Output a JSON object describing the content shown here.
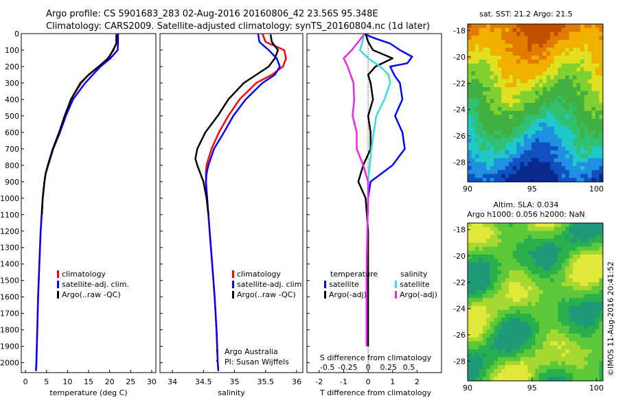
{
  "header": {
    "line1": "Argo profile: CS 5901683_283 02-Aug-2016 20160806_42 23.56S 95.348E",
    "line2": "Climatology: CARS2009. Satellite-adjusted climatology: synTS_20160804.nc (1d later)"
  },
  "footer_stamp": "©IMOS 11-Aug-2016 20:41:52",
  "colors": {
    "climatology": "#ff0000",
    "satellite": "#0000ff",
    "argo": "#000000",
    "sal_satellite": "#33dddd",
    "sal_argo": "#ee22ee"
  },
  "chart_data": [
    {
      "id": "temperature",
      "type": "line",
      "xlabel": "temperature (deg C)",
      "ylabel": "",
      "xlim": [
        -1,
        31
      ],
      "ylim": [
        2060,
        0
      ],
      "xticks": [
        "0",
        "5",
        "10",
        "15",
        "20",
        "25",
        "30"
      ],
      "yticks": [
        "0",
        "100",
        "200",
        "300",
        "400",
        "500",
        "600",
        "700",
        "800",
        "900",
        "1000",
        "1100",
        "1200",
        "1300",
        "1400",
        "1500",
        "1600",
        "1700",
        "1800",
        "1900",
        "2000"
      ],
      "legend": [
        "climatology",
        "satellite-adj. clim.",
        "Argo(..raw -QC)"
      ],
      "series": [
        {
          "name": "climatology",
          "color": "#ff0000",
          "y": [
            0,
            60,
            100,
            150,
            200,
            250,
            300,
            400,
            500,
            600,
            700,
            800,
            850,
            900,
            1000,
            1200,
            1400,
            1600,
            1800,
            2000,
            2050
          ],
          "x": [
            21.7,
            21.6,
            20.8,
            19.8,
            17.4,
            15.0,
            13.0,
            10.8,
            9.4,
            8.0,
            6.5,
            5.4,
            4.8,
            4.5,
            4.1,
            3.6,
            3.3,
            3.0,
            2.8,
            2.6,
            2.5
          ]
        },
        {
          "name": "satellite-adj. clim.",
          "color": "#0000ff",
          "y": [
            0,
            60,
            100,
            150,
            200,
            250,
            300,
            400,
            500,
            600,
            700,
            800,
            850,
            900,
            1000,
            1200,
            1400,
            1600,
            1800,
            2000,
            2050
          ],
          "x": [
            22.0,
            22.0,
            21.9,
            20.2,
            17.8,
            16.0,
            14.2,
            11.3,
            9.6,
            8.2,
            6.6,
            5.4,
            4.8,
            4.5,
            4.1,
            3.6,
            3.3,
            3.0,
            2.8,
            2.6,
            2.5
          ]
        },
        {
          "name": "Argo(..raw -QC)",
          "color": "#000000",
          "y": [
            5,
            60,
            100,
            150,
            200,
            250,
            300,
            400,
            500,
            600,
            700,
            800,
            850,
            900,
            1000,
            1100
          ],
          "x": [
            21.6,
            21.6,
            20.9,
            19.6,
            17.4,
            15.0,
            13.2,
            10.8,
            9.3,
            8.0,
            6.5,
            5.3,
            4.8,
            4.5,
            4.1,
            3.9
          ]
        }
      ]
    },
    {
      "id": "salinity",
      "type": "line",
      "xlabel": "salinity",
      "ylabel": "",
      "xlim": [
        33.8,
        36.1
      ],
      "ylim": [
        2060,
        0
      ],
      "xticks": [
        "34",
        "34.5",
        "35",
        "35.5",
        "36"
      ],
      "legend": [
        "climatology",
        "satellite-adj. clim.",
        "Argo(..raw -QC)"
      ],
      "annotation": [
        "Argo Australia",
        "PI: Susan Wijffels"
      ],
      "series": [
        {
          "name": "climatology",
          "color": "#ff0000",
          "y": [
            0,
            50,
            100,
            150,
            200,
            250,
            300,
            400,
            500,
            600,
            700,
            800,
            850,
            900,
            1000,
            1200,
            1400,
            1600,
            1800,
            2000,
            2050
          ],
          "x": [
            35.45,
            35.5,
            35.8,
            35.83,
            35.78,
            35.6,
            35.35,
            35.08,
            34.9,
            34.75,
            34.63,
            34.55,
            34.54,
            34.54,
            34.56,
            34.6,
            34.64,
            34.68,
            34.71,
            34.73,
            34.74
          ]
        },
        {
          "name": "satellite-adj. clim.",
          "color": "#0000ff",
          "y": [
            0,
            50,
            100,
            150,
            200,
            250,
            300,
            400,
            500,
            600,
            700,
            800,
            850,
            900,
            1000,
            1200,
            1400,
            1600,
            1800,
            2000,
            2050
          ],
          "x": [
            35.38,
            35.4,
            35.55,
            35.68,
            35.73,
            35.65,
            35.45,
            35.18,
            34.98,
            34.83,
            34.67,
            34.58,
            34.55,
            34.54,
            34.56,
            34.6,
            34.64,
            34.68,
            34.71,
            34.73,
            34.74
          ]
        },
        {
          "name": "Argo(..raw -QC)",
          "color": "#000000",
          "y": [
            5,
            50,
            100,
            150,
            200,
            250,
            300,
            400,
            500,
            600,
            700,
            760,
            800,
            850,
            900,
            1000,
            1100
          ],
          "x": [
            35.58,
            35.6,
            35.7,
            35.65,
            35.55,
            35.35,
            35.15,
            34.9,
            34.73,
            34.53,
            34.4,
            34.37,
            34.4,
            34.45,
            34.5,
            34.55,
            34.58
          ]
        }
      ]
    },
    {
      "id": "difference",
      "type": "line",
      "xlabel": "T difference from climatology",
      "x2label": "S difference from climatology",
      "xlim": [
        -2.5,
        3.0
      ],
      "ylim": [
        2060,
        0
      ],
      "xticks": [
        "-2",
        "-1",
        "0",
        "1",
        "2"
      ],
      "x2lim": [
        -0.75,
        0.9
      ],
      "x2ticks": [
        "-0.5",
        "-0.25",
        "0",
        "0.25",
        "0.5"
      ],
      "legend_groups": [
        {
          "title": "temperature",
          "items": [
            "satellite",
            "Argo(-adj)"
          ]
        },
        {
          "title": "salinity",
          "items": [
            "satellite",
            "Argo(-adj)"
          ]
        }
      ],
      "series": [
        {
          "name": "temperature satellite",
          "color": "#0000ff",
          "axis": "T",
          "y": [
            0,
            30,
            60,
            100,
            140,
            180,
            200,
            230,
            260,
            300,
            400,
            500,
            600,
            700,
            800,
            900,
            1000
          ],
          "x": [
            -0.2,
            0.3,
            0.9,
            1.3,
            1.8,
            1.6,
            0.9,
            1.0,
            1.1,
            1.3,
            1.4,
            1.1,
            1.4,
            1.5,
            1.0,
            0.1,
            0.0
          ]
        },
        {
          "name": "temperature Argo(-adj)",
          "color": "#000000",
          "axis": "T",
          "y": [
            0,
            50,
            100,
            150,
            200,
            250,
            300,
            400,
            500,
            600,
            700,
            800,
            900,
            1000,
            1200,
            1500,
            1800,
            1900
          ],
          "x": [
            -0.1,
            0.0,
            0.2,
            1.0,
            0.3,
            0.0,
            0.1,
            0.2,
            0.0,
            0.1,
            0.1,
            -0.2,
            -0.4,
            -0.1,
            0.0,
            0.0,
            0.0,
            0.0
          ]
        },
        {
          "name": "salinity satellite",
          "color": "#33dddd",
          "axis": "S",
          "y": [
            0,
            50,
            100,
            150,
            200,
            250,
            300,
            400,
            500,
            600,
            700,
            800,
            900,
            1000,
            1100
          ],
          "x": [
            -0.05,
            -0.07,
            -0.1,
            0.0,
            0.15,
            0.25,
            0.27,
            0.2,
            0.1,
            0.07,
            0.04,
            0.02,
            0.0,
            0.0,
            0.0
          ]
        },
        {
          "name": "salinity Argo(-adj)",
          "color": "#ee22ee",
          "axis": "S",
          "y": [
            5,
            50,
            100,
            150,
            200,
            300,
            400,
            500,
            600,
            700,
            800,
            850,
            900,
            1000,
            1200,
            1500,
            1800,
            1900
          ],
          "x": [
            -0.05,
            -0.12,
            -0.2,
            -0.3,
            -0.25,
            -0.18,
            -0.17,
            -0.19,
            -0.14,
            -0.14,
            -0.06,
            -0.03,
            0.0,
            0.0,
            -0.01,
            -0.02,
            -0.02,
            -0.02
          ]
        }
      ]
    },
    {
      "id": "sst_map",
      "type": "heatmap",
      "title": "sat. SST: 21.2 Argo: 21.5",
      "xlim": [
        90,
        100.5
      ],
      "ylim": [
        -29.5,
        -17.5
      ],
      "xticks": [
        "90",
        "95",
        "100"
      ],
      "yticks": [
        "-18",
        "-20",
        "-22",
        "-24",
        "-26",
        "-28"
      ]
    },
    {
      "id": "sla_map",
      "type": "heatmap",
      "title": "Altim. SLA: 0.034",
      "subtitle": "Argo h1000: 0.056 h2000: NaN",
      "xlim": [
        90,
        100.5
      ],
      "ylim": [
        -29.5,
        -17.5
      ],
      "xticks": [
        "90",
        "95",
        "100"
      ],
      "yticks": [
        "-18",
        "-20",
        "-22",
        "-24",
        "-26",
        "-28"
      ]
    }
  ]
}
